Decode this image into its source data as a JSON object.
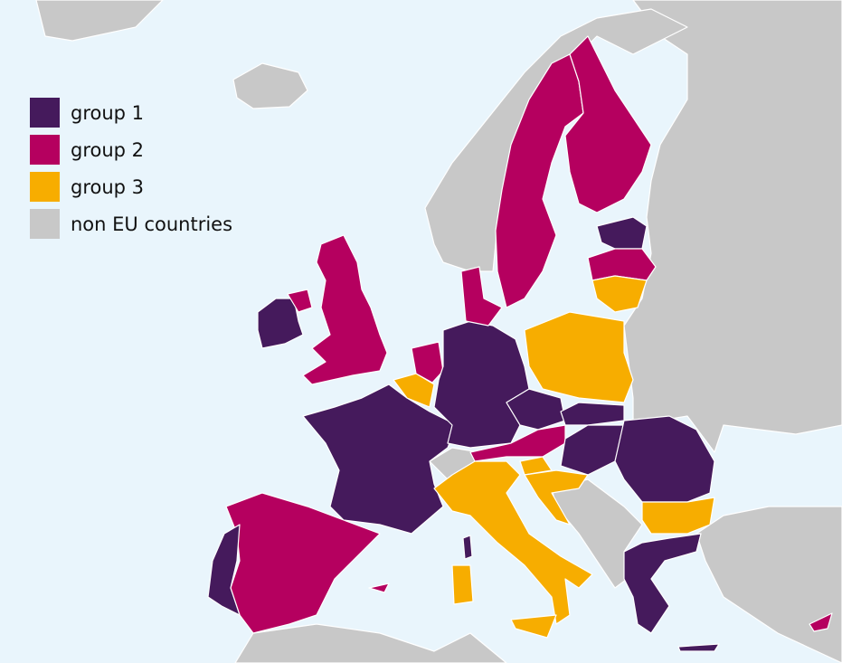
{
  "legend": [
    {
      "label": "group 1",
      "color": "#451a5c"
    },
    {
      "label": "group 2",
      "color": "#b5005f"
    },
    {
      "label": "group 3",
      "color": "#f7ad00"
    },
    {
      "label": "non EU countries",
      "color": "#c8c8c8"
    }
  ]
}
